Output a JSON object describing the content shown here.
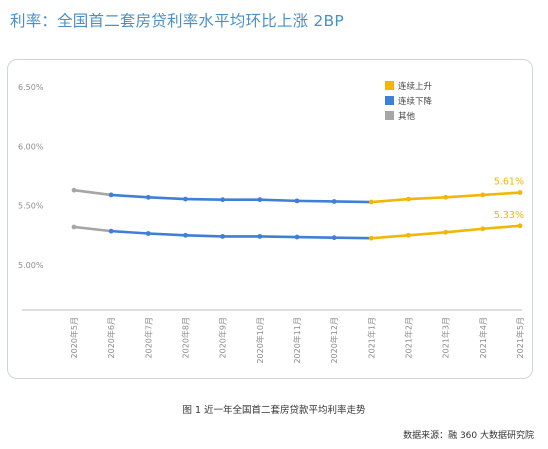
{
  "page": {
    "headline": "利率：全国首二套房贷利率水平均环比上涨 2BP",
    "caption": "图 1  近一年全国首二套房贷款平均利率走势",
    "source": "数据来源：融 360 大数据研究院"
  },
  "chart_data": {
    "type": "line",
    "categories": [
      "2020年5月",
      "2020年6月",
      "2020年7月",
      "2020年8月",
      "2020年9月",
      "2020年10月",
      "2020年11月",
      "2020年12月",
      "2021年1月",
      "2021年2月",
      "2021年3月",
      "2021年4月",
      "2021年5月"
    ],
    "series": [
      {
        "values": [
          5.63,
          5.59,
          5.57,
          5.555,
          5.55,
          5.55,
          5.54,
          5.535,
          5.53,
          5.555,
          5.57,
          5.59,
          5.61
        ]
      },
      {
        "values": [
          5.32,
          5.285,
          5.265,
          5.25,
          5.24,
          5.24,
          5.235,
          5.23,
          5.225,
          5.25,
          5.275,
          5.305,
          5.33
        ]
      }
    ],
    "end_labels": [
      "5.61%",
      "5.33%"
    ],
    "yticks": [
      "5.00%",
      "5.50%",
      "6.00%",
      "6.50%"
    ],
    "ytick_values": [
      5.0,
      5.5,
      6.0,
      6.5
    ],
    "ylim": [
      4.62,
      6.5
    ],
    "segments": [
      {
        "from": 0,
        "to": 1,
        "legend": "其他"
      },
      {
        "from": 1,
        "to": 8,
        "legend": "连续下降"
      },
      {
        "from": 8,
        "to": 12,
        "legend": "连续上升"
      }
    ],
    "legend": [
      {
        "label": "连续上升",
        "color": "#f2b705"
      },
      {
        "label": "连续下降",
        "color": "#3f7fd8"
      },
      {
        "label": "其他",
        "color": "#a6a6a6"
      }
    ],
    "legend_position": "top-right",
    "grid": false
  }
}
